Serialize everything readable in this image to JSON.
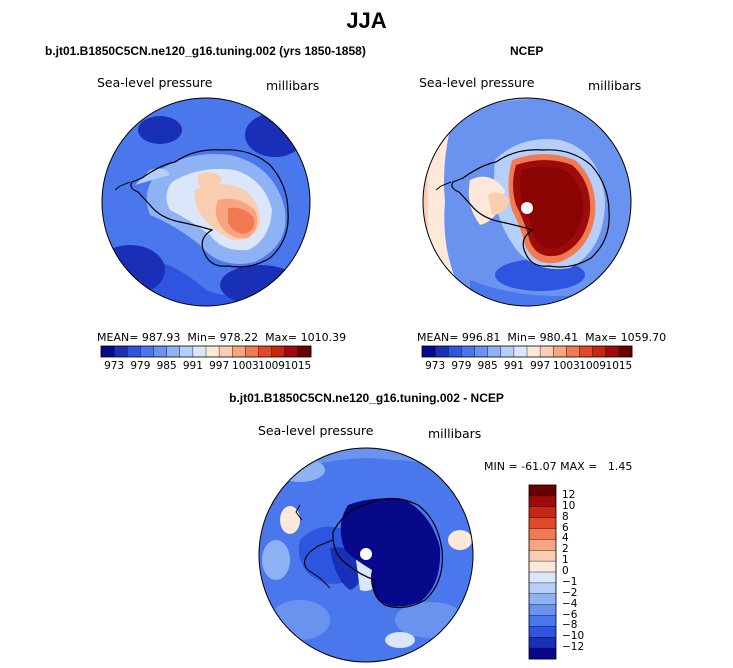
{
  "title": "JJA",
  "chart_data": [
    {
      "type": "heatmap",
      "projection": "south-polar-stereographic",
      "title": "b.jt01.B1850C5CN.ne120_g16.tuning.002 (yrs 1850-1858)",
      "field_label": "Sea-level pressure",
      "units": "millibars",
      "stats": {
        "mean_label": "MEAN=",
        "mean": "987.93",
        "min_label": "Min=",
        "min": "978.22",
        "max_label": "Max=",
        "max": "1010.39"
      },
      "colorbar": {
        "orientation": "horizontal",
        "levels": [
          973,
          976,
          979,
          982,
          985,
          988,
          991,
          994,
          997,
          1000,
          1003,
          1006,
          1009,
          1012,
          1015
        ],
        "tick_labels": [
          "973",
          "979",
          "985",
          "991",
          "997",
          "1003",
          "1009",
          "1015"
        ],
        "colors": [
          "#08088a",
          "#1a2fb8",
          "#2e55e0",
          "#4a78ec",
          "#6a93f0",
          "#8fb2f5",
          "#b6cff8",
          "#dbe6fb",
          "#fce9d9",
          "#f9cdb0",
          "#f6a580",
          "#f27a52",
          "#e0492a",
          "#c72613",
          "#9e0b0b",
          "#6b0000"
        ]
      }
    },
    {
      "type": "heatmap",
      "projection": "south-polar-stereographic",
      "title": "NCEP",
      "field_label": "Sea-level pressure",
      "units": "millibars",
      "stats": {
        "mean_label": "MEAN=",
        "mean": "996.81",
        "min_label": "Min=",
        "min": "980.41",
        "max_label": "Max=",
        "max": "1059.70"
      },
      "colorbar": {
        "orientation": "horizontal",
        "levels": [
          973,
          976,
          979,
          982,
          985,
          988,
          991,
          994,
          997,
          1000,
          1003,
          1006,
          1009,
          1012,
          1015
        ],
        "tick_labels": [
          "973",
          "979",
          "985",
          "991",
          "997",
          "1003",
          "1009",
          "1015"
        ],
        "colors": [
          "#08088a",
          "#1a2fb8",
          "#2e55e0",
          "#4a78ec",
          "#6a93f0",
          "#8fb2f5",
          "#b6cff8",
          "#dbe6fb",
          "#fce9d9",
          "#f9cdb0",
          "#f6a580",
          "#f27a52",
          "#e0492a",
          "#c72613",
          "#9e0b0b",
          "#6b0000"
        ]
      }
    },
    {
      "type": "heatmap",
      "projection": "south-polar-stereographic",
      "title": "b.jt01.B1850C5CN.ne120_g16.tuning.002 - NCEP",
      "field_label": "Sea-level pressure",
      "units": "millibars",
      "stats": {
        "text": "MIN = -61.07 MAX =   1.45",
        "min": "-61.07",
        "max": "1.45"
      },
      "colorbar": {
        "orientation": "vertical",
        "levels": [
          -12,
          -10,
          -8,
          -6,
          -4,
          -2,
          -1,
          0,
          1,
          2,
          4,
          6,
          8,
          10,
          12
        ],
        "tick_labels": [
          "12",
          "10",
          "8",
          "6",
          "4",
          "2",
          "1",
          "0",
          "−1",
          "−2",
          "−4",
          "−6",
          "−8",
          "−10",
          "−12"
        ],
        "colors": [
          "#08088a",
          "#1a2fb8",
          "#2e55e0",
          "#4a78ec",
          "#6a93f0",
          "#8fb2f5",
          "#b6cff8",
          "#dbe6fb",
          "#fce9d9",
          "#f9cdb0",
          "#f6a580",
          "#f27a52",
          "#e0492a",
          "#c72613",
          "#9e0b0b",
          "#6b0000"
        ]
      }
    }
  ]
}
